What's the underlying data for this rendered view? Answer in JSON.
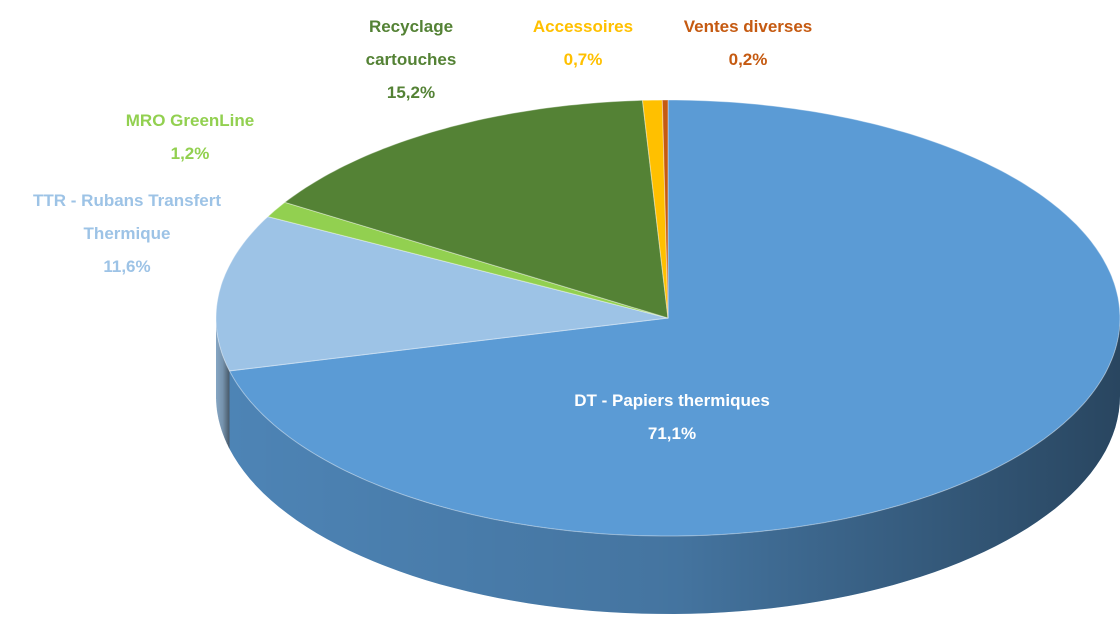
{
  "chart_data": {
    "type": "pie3d",
    "categories": [
      "DT - Papiers thermiques",
      "TTR - Rubans Transfert Thermique",
      "MRO GreenLine",
      "Recyclage cartouches",
      "Accessoires",
      "Ventes diverses"
    ],
    "values": [
      71.1,
      11.6,
      1.2,
      15.2,
      0.7,
      0.2
    ],
    "value_labels": [
      "71,1%",
      "11,6%",
      "1,2%",
      "15,2%",
      "0,7%",
      "0,2%"
    ],
    "colors": [
      "#5b9bd5",
      "#9dc3e6",
      "#92d050",
      "#548235",
      "#ffc000",
      "#c55a11"
    ]
  }
}
